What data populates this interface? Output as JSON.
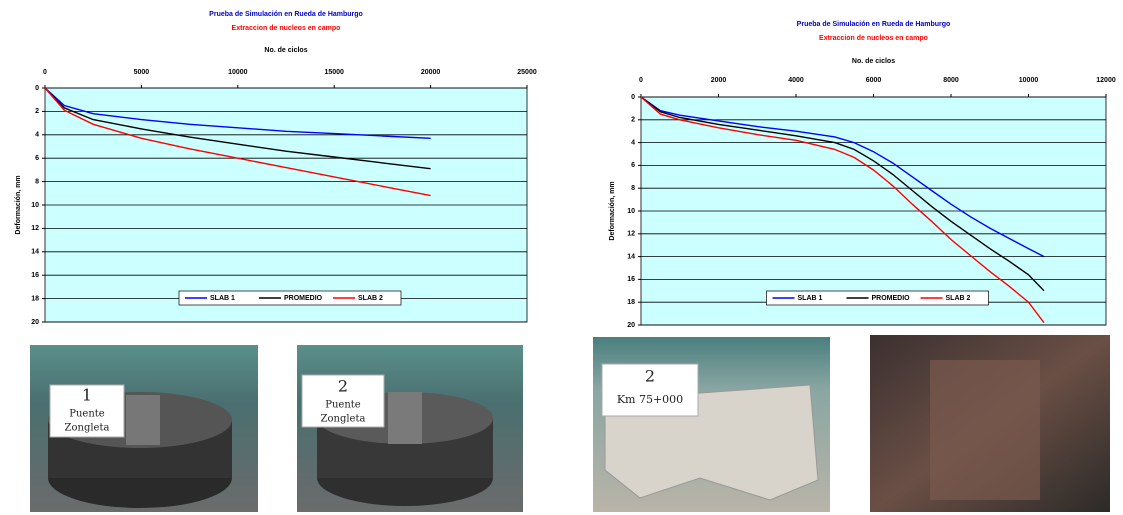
{
  "chart_data": [
    {
      "type": "line",
      "title": "Prueba de Simulación en Rueda de Hamburgo",
      "subtitle": "Extraccion de nucleos en campo",
      "x_label": "No. de ciclos",
      "y_label": "Deformación, mm",
      "x": [
        0,
        1000,
        2500,
        5000,
        7500,
        10000,
        12500,
        15000,
        17500,
        20000
      ],
      "series": [
        {
          "name": "SLAB 1",
          "color": "#0000ff",
          "values": [
            0,
            1.5,
            2.2,
            2.7,
            3.1,
            3.4,
            3.7,
            3.9,
            4.1,
            4.3
          ]
        },
        {
          "name": "PROMEDIO",
          "color": "#000000",
          "values": [
            0,
            1.7,
            2.7,
            3.5,
            4.2,
            4.8,
            5.4,
            5.9,
            6.4,
            6.9
          ]
        },
        {
          "name": "SLAB 2",
          "color": "#ff0000",
          "values": [
            0,
            1.9,
            3.1,
            4.3,
            5.2,
            6.0,
            6.8,
            7.6,
            8.4,
            9.2
          ]
        }
      ],
      "xlim": [
        0,
        25000
      ],
      "xticks": [
        0,
        5000,
        10000,
        15000,
        20000,
        25000
      ],
      "ylim": [
        0,
        20
      ],
      "yticks": [
        0,
        2,
        4,
        6,
        8,
        10,
        12,
        14,
        16,
        18,
        20
      ],
      "y_inverted": true,
      "x_axis_top": true,
      "grid": true,
      "legend": "bottom",
      "background": "#ccffff"
    },
    {
      "type": "line",
      "title": "Prueba de Simulación en Rueda de Hamburgo",
      "subtitle": "Extraccion de nucleos en campo",
      "x_label": "No. de ciclos",
      "y_label": "Deformación, mm",
      "x": [
        0,
        500,
        1000,
        2000,
        3000,
        4000,
        5000,
        5500,
        6000,
        6500,
        7000,
        7500,
        8000,
        8500,
        9000,
        9500,
        10000,
        10400
      ],
      "series": [
        {
          "name": "SLAB 1",
          "color": "#0000ff",
          "values": [
            0,
            1.2,
            1.6,
            2.1,
            2.6,
            3.0,
            3.5,
            4.0,
            4.8,
            5.8,
            7.0,
            8.2,
            9.4,
            10.5,
            11.5,
            12.4,
            13.3,
            14.0
          ]
        },
        {
          "name": "PROMEDIO",
          "color": "#000000",
          "values": [
            0,
            1.3,
            1.8,
            2.4,
            2.9,
            3.4,
            4.0,
            4.6,
            5.6,
            6.8,
            8.2,
            9.6,
            10.9,
            12.1,
            13.3,
            14.4,
            15.6,
            17.0
          ]
        },
        {
          "name": "SLAB 2",
          "color": "#ff0000",
          "values": [
            0,
            1.5,
            2.0,
            2.7,
            3.3,
            3.8,
            4.6,
            5.3,
            6.4,
            7.8,
            9.4,
            10.9,
            12.5,
            13.9,
            15.3,
            16.6,
            18.0,
            19.8
          ]
        }
      ],
      "xlim": [
        0,
        12000
      ],
      "xticks": [
        0,
        2000,
        4000,
        6000,
        8000,
        10000,
        12000
      ],
      "ylim": [
        0,
        20
      ],
      "yticks": [
        0,
        2,
        4,
        6,
        8,
        10,
        12,
        14,
        16,
        18,
        20
      ],
      "y_inverted": true,
      "x_axis_top": true,
      "grid": true,
      "legend": "bottom",
      "background": "#ccffff"
    }
  ],
  "photos": [
    {
      "card": [
        "1",
        "Puente",
        "Zongleta"
      ]
    },
    {
      "card": [
        "2",
        "Puente",
        "Zongleta"
      ]
    },
    {
      "card": [
        "2",
        "Km 75+000"
      ]
    }
  ]
}
